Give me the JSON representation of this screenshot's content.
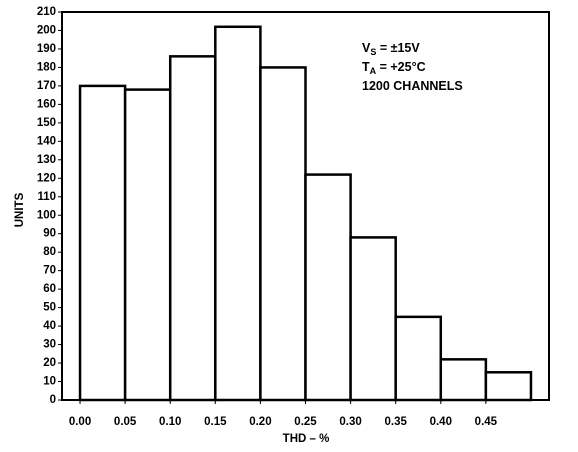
{
  "chart_data": {
    "type": "histogram",
    "x_label": "THD – %",
    "y_label": "UNITS",
    "annotations": [
      {
        "main": "V",
        "sub": "S",
        "rest": " = ±15V"
      },
      {
        "main": "T",
        "sub": "A",
        "rest": " = +25°C"
      },
      {
        "main": "1200 CHANNELS"
      }
    ],
    "bins": [
      0.0,
      0.05,
      0.1,
      0.15,
      0.2,
      0.25,
      0.3,
      0.35,
      0.4,
      0.45,
      0.5
    ],
    "values": [
      170,
      168,
      186,
      202,
      180,
      122,
      88,
      45,
      22,
      15
    ],
    "color": "#ffffff",
    "xlim": [
      -0.02,
      0.52
    ],
    "xticks": [
      {
        "value": 0,
        "label": "0.00"
      },
      {
        "value": 0.05,
        "label": "0.05"
      },
      {
        "value": 0.1,
        "label": "0.10"
      },
      {
        "value": 0.15,
        "label": "0.15"
      },
      {
        "value": 0.2,
        "label": "0.20"
      },
      {
        "value": 0.25,
        "label": "0.25"
      },
      {
        "value": 0.3,
        "label": "0.30"
      },
      {
        "value": 0.35,
        "label": "0.35"
      },
      {
        "value": 0.4,
        "label": "0.40"
      },
      {
        "value": 0.45,
        "label": "0.45"
      }
    ],
    "ylim": [
      0,
      210
    ],
    "yticks": [
      0,
      10,
      20,
      30,
      40,
      50,
      60,
      70,
      80,
      90,
      100,
      110,
      120,
      130,
      140,
      150,
      160,
      170,
      180,
      190,
      200,
      210
    ]
  }
}
